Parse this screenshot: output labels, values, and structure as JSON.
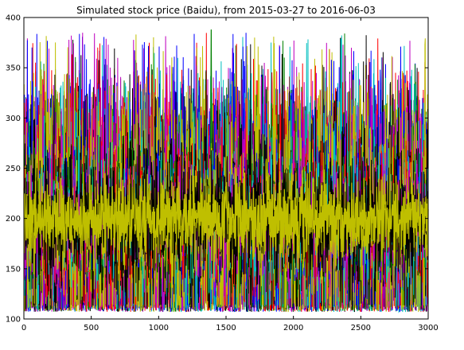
{
  "chart_data": {
    "type": "line",
    "title": "Simulated stock price (Baidu), from 2015-03-27 to 2016-06-03",
    "xlabel": "",
    "ylabel": "",
    "xlim": [
      0,
      3000
    ],
    "ylim": [
      100,
      400
    ],
    "x_ticks": [
      0,
      500,
      1000,
      1500,
      2000,
      2500,
      3000
    ],
    "y_ticks": [
      100,
      150,
      200,
      250,
      300,
      350,
      400
    ],
    "grid": false,
    "legend": "none",
    "n_points_per_series": 3000,
    "series_colors": [
      "#0000ff",
      "#008000",
      "#ff0000",
      "#00bfbf",
      "#bf00bf",
      "#bfbf00",
      "#000000"
    ],
    "series_count": 28,
    "typical_band": [
      165,
      235
    ],
    "overall_range": [
      107,
      388
    ],
    "max_peak": {
      "x": 1390,
      "y": 388,
      "color": "#008000"
    }
  }
}
